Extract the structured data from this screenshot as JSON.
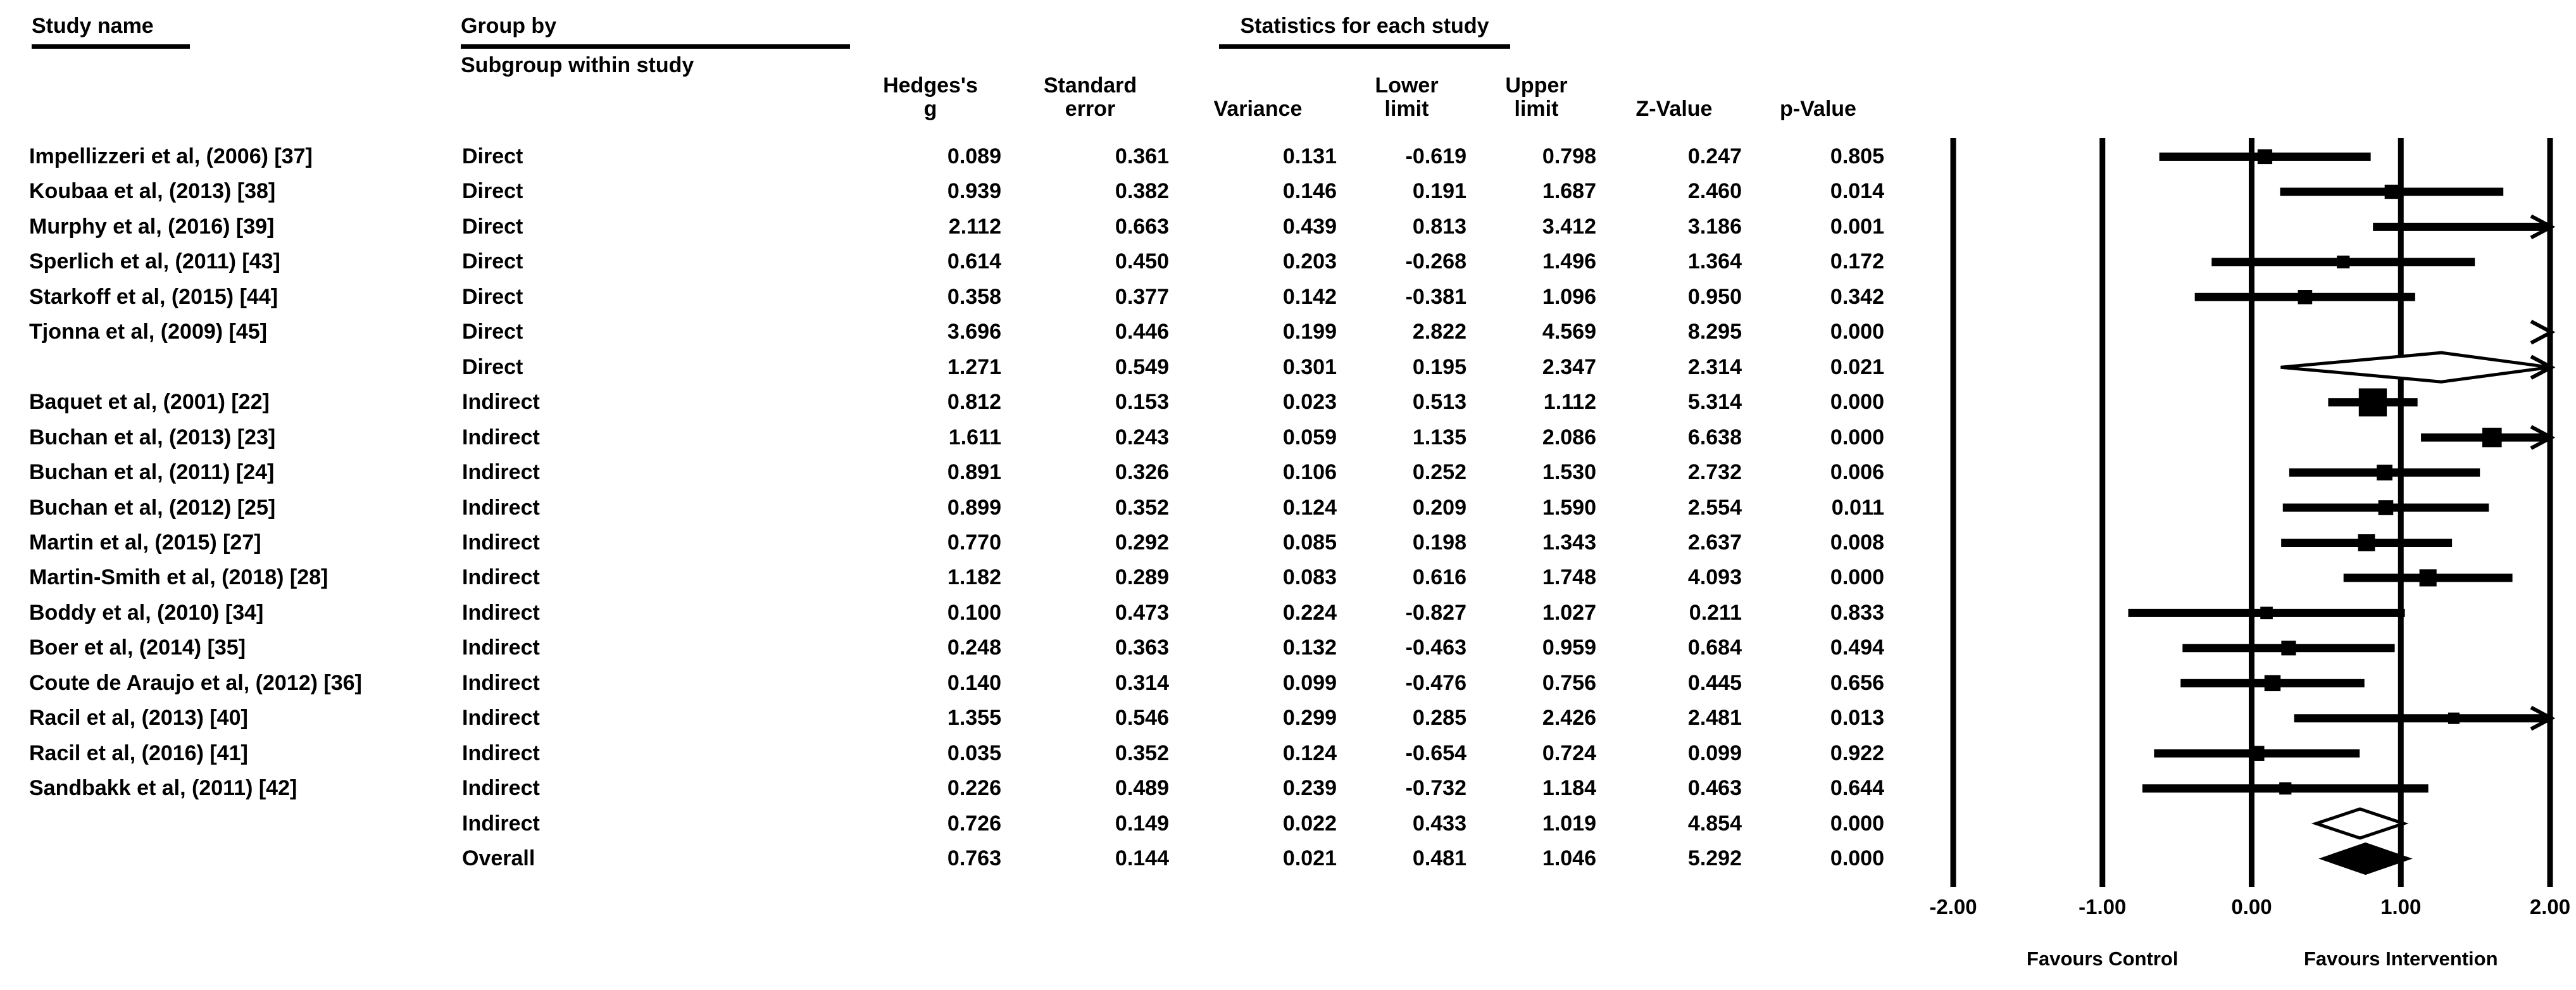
{
  "colors": {
    "ink": "#000000",
    "background": "#ffffff"
  },
  "columns": {
    "study": "Study name",
    "group_by": "Group by",
    "subgroup": "Subgroup within study",
    "stats_header": "Statistics for each study",
    "stat_cols": [
      "Hedges's\ng",
      "Standard\nerror",
      "Variance",
      "Lower\nlimit",
      "Upper\nlimit",
      "Z-Value",
      "p-Value"
    ]
  },
  "chart_data": {
    "type": "scatter",
    "variant": "forest-plot",
    "title": "",
    "xlabel": "",
    "xlim": [
      -2,
      2
    ],
    "grid": "vertical-reference-lines",
    "ticks": [
      {
        "v": -2,
        "label": "-2.00"
      },
      {
        "v": -1,
        "label": "-1.00"
      },
      {
        "v": 0,
        "label": "0.00"
      },
      {
        "v": 1,
        "label": "1.00"
      },
      {
        "v": 2,
        "label": "2.00"
      }
    ],
    "favours_left": "Favours Control",
    "favours_right": "Favours Intervention",
    "rows": [
      {
        "study": "Impellizzeri et al, (2006) [37]",
        "subgroup": "Direct",
        "g": 0.089,
        "se": 0.361,
        "variance": 0.131,
        "lower": -0.619,
        "upper": 0.798,
        "z": 0.247,
        "p": 0.805,
        "marker": "square"
      },
      {
        "study": "Koubaa et al, (2013) [38]",
        "subgroup": "Direct",
        "g": 0.939,
        "se": 0.382,
        "variance": 0.146,
        "lower": 0.191,
        "upper": 1.687,
        "z": 2.46,
        "p": 0.014,
        "marker": "square"
      },
      {
        "study": "Murphy et al, (2016) [39]",
        "subgroup": "Direct",
        "g": 2.112,
        "se": 0.663,
        "variance": 0.439,
        "lower": 0.813,
        "upper": 3.412,
        "z": 3.186,
        "p": 0.001,
        "marker": "square"
      },
      {
        "study": "Sperlich et al, (2011) [43]",
        "subgroup": "Direct",
        "g": 0.614,
        "se": 0.45,
        "variance": 0.203,
        "lower": -0.268,
        "upper": 1.496,
        "z": 1.364,
        "p": 0.172,
        "marker": "square"
      },
      {
        "study": "Starkoff et al, (2015) [44]",
        "subgroup": "Direct",
        "g": 0.358,
        "se": 0.377,
        "variance": 0.142,
        "lower": -0.381,
        "upper": 1.096,
        "z": 0.95,
        "p": 0.342,
        "marker": "square"
      },
      {
        "study": "Tjonna et al, (2009) [45]",
        "subgroup": "Direct",
        "g": 3.696,
        "se": 0.446,
        "variance": 0.199,
        "lower": 2.822,
        "upper": 4.569,
        "z": 8.295,
        "p": 0.0,
        "marker": "square"
      },
      {
        "study": "",
        "subgroup": "Direct",
        "g": 1.271,
        "se": 0.549,
        "variance": 0.301,
        "lower": 0.195,
        "upper": 2.347,
        "z": 2.314,
        "p": 0.021,
        "marker": "open-diamond"
      },
      {
        "study": "Baquet et al, (2001) [22]",
        "subgroup": "Indirect",
        "g": 0.812,
        "se": 0.153,
        "variance": 0.023,
        "lower": 0.513,
        "upper": 1.112,
        "z": 5.314,
        "p": 0.0,
        "marker": "square"
      },
      {
        "study": "Buchan et al, (2013) [23]",
        "subgroup": "Indirect",
        "g": 1.611,
        "se": 0.243,
        "variance": 0.059,
        "lower": 1.135,
        "upper": 2.086,
        "z": 6.638,
        "p": 0.0,
        "marker": "square"
      },
      {
        "study": "Buchan et al, (2011) [24]",
        "subgroup": "Indirect",
        "g": 0.891,
        "se": 0.326,
        "variance": 0.106,
        "lower": 0.252,
        "upper": 1.53,
        "z": 2.732,
        "p": 0.006,
        "marker": "square"
      },
      {
        "study": "Buchan et al, (2012) [25]",
        "subgroup": "Indirect",
        "g": 0.899,
        "se": 0.352,
        "variance": 0.124,
        "lower": 0.209,
        "upper": 1.59,
        "z": 2.554,
        "p": 0.011,
        "marker": "square"
      },
      {
        "study": "Martin et al, (2015) [27]",
        "subgroup": "Indirect",
        "g": 0.77,
        "se": 0.292,
        "variance": 0.085,
        "lower": 0.198,
        "upper": 1.343,
        "z": 2.637,
        "p": 0.008,
        "marker": "square"
      },
      {
        "study": "Martin-Smith et al, (2018) [28]",
        "subgroup": "Indirect",
        "g": 1.182,
        "se": 0.289,
        "variance": 0.083,
        "lower": 0.616,
        "upper": 1.748,
        "z": 4.093,
        "p": 0.0,
        "marker": "square"
      },
      {
        "study": "Boddy et al, (2010) [34]",
        "subgroup": "Indirect",
        "g": 0.1,
        "se": 0.473,
        "variance": 0.224,
        "lower": -0.827,
        "upper": 1.027,
        "z": 0.211,
        "p": 0.833,
        "marker": "square"
      },
      {
        "study": "Boer et al, (2014) [35]",
        "subgroup": "Indirect",
        "g": 0.248,
        "se": 0.363,
        "variance": 0.132,
        "lower": -0.463,
        "upper": 0.959,
        "z": 0.684,
        "p": 0.494,
        "marker": "square"
      },
      {
        "study": "Coute de Araujo et al, (2012) [36]",
        "subgroup": "Indirect",
        "g": 0.14,
        "se": 0.314,
        "variance": 0.099,
        "lower": -0.476,
        "upper": 0.756,
        "z": 0.445,
        "p": 0.656,
        "marker": "square"
      },
      {
        "study": "Racil et al, (2013) [40]",
        "subgroup": "Indirect",
        "g": 1.355,
        "se": 0.546,
        "variance": 0.299,
        "lower": 0.285,
        "upper": 2.426,
        "z": 2.481,
        "p": 0.013,
        "marker": "square"
      },
      {
        "study": "Racil et al, (2016) [41]",
        "subgroup": "Indirect",
        "g": 0.035,
        "se": 0.352,
        "variance": 0.124,
        "lower": -0.654,
        "upper": 0.724,
        "z": 0.099,
        "p": 0.922,
        "marker": "square"
      },
      {
        "study": "Sandbakk et al, (2011) [42]",
        "subgroup": "Indirect",
        "g": 0.226,
        "se": 0.489,
        "variance": 0.239,
        "lower": -0.732,
        "upper": 1.184,
        "z": 0.463,
        "p": 0.644,
        "marker": "square"
      },
      {
        "study": "",
        "subgroup": "Indirect",
        "g": 0.726,
        "se": 0.149,
        "variance": 0.022,
        "lower": 0.433,
        "upper": 1.019,
        "z": 4.854,
        "p": 0.0,
        "marker": "open-diamond"
      },
      {
        "study": "",
        "subgroup": "Overall",
        "g": 0.763,
        "se": 0.144,
        "variance": 0.021,
        "lower": 0.481,
        "upper": 1.046,
        "z": 5.292,
        "p": 0.0,
        "marker": "filled-diamond"
      }
    ]
  }
}
